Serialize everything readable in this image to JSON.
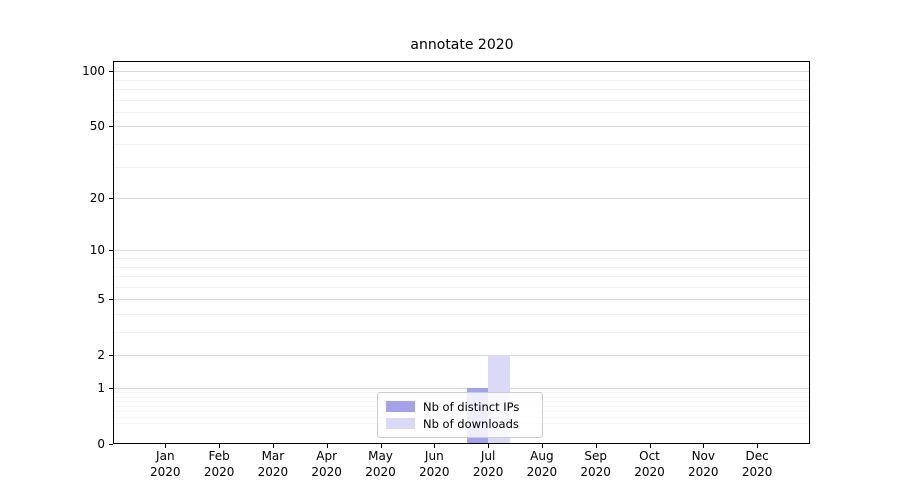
{
  "chart_data": {
    "type": "bar",
    "title": "annotate 2020",
    "categories": [
      "Jan",
      "Feb",
      "Mar",
      "Apr",
      "May",
      "Jun",
      "Jul",
      "Aug",
      "Sep",
      "Oct",
      "Nov",
      "Dec"
    ],
    "category_year": "2020",
    "series": [
      {
        "name": "Nb of distinct IPs",
        "color": "#a3a3ec",
        "values": [
          0,
          0,
          0,
          0,
          0,
          0,
          1,
          0,
          0,
          0,
          0,
          0
        ]
      },
      {
        "name": "Nb of downloads",
        "color": "#dadaf7",
        "values": [
          0,
          0,
          0,
          0,
          0,
          0,
          2,
          0,
          0,
          0,
          0,
          0
        ]
      }
    ],
    "y_axis": {
      "scale": "log1p",
      "major_ticks": [
        0,
        1,
        2,
        5,
        10,
        20,
        50,
        100
      ],
      "minor_ticks": [
        3,
        4,
        6,
        7,
        8,
        9,
        30,
        40,
        60,
        70,
        80,
        90
      ],
      "sub_minor_ticks": [
        0.3,
        0.4,
        0.5,
        0.6,
        0.7,
        0.8,
        0.9
      ],
      "ylim": [
        0,
        111
      ]
    },
    "legend": {
      "position": "lower center"
    },
    "grid": "on"
  }
}
